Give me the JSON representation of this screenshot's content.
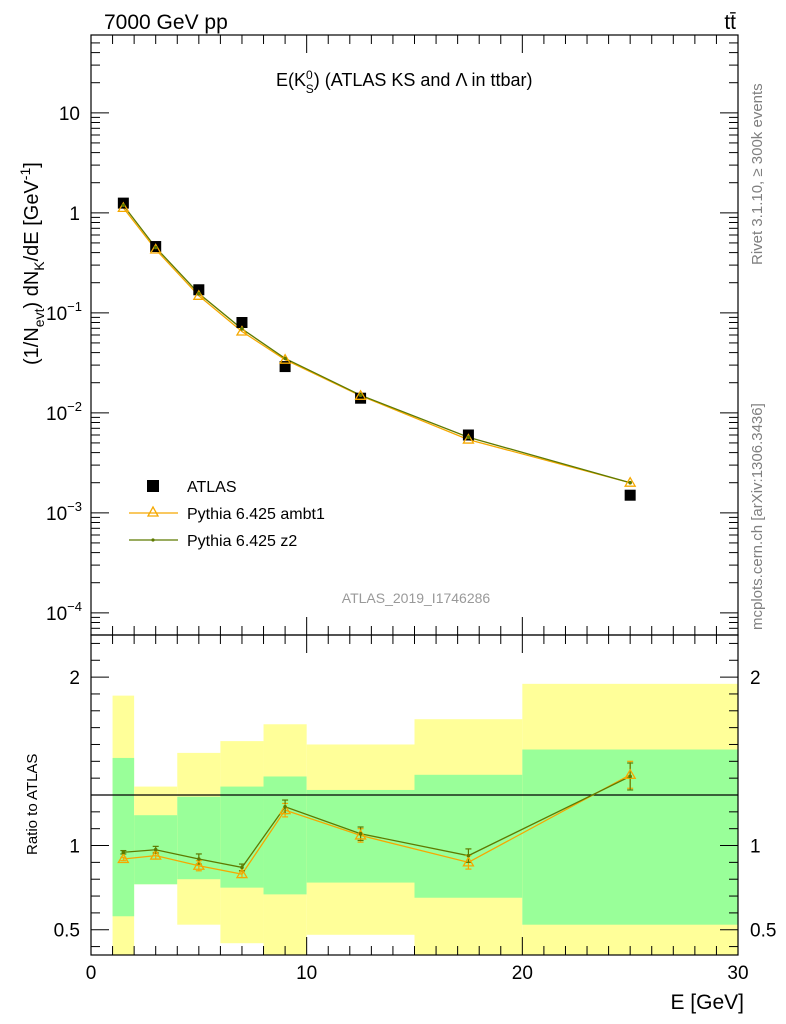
{
  "header": {
    "left": "7000 GeV pp",
    "right": "tt̄"
  },
  "side_labels": {
    "rivet": "Rivet 3.1.10, ≥ 300k events",
    "mcplots": "mcplots.cern.ch [arXiv:1306.3436]"
  },
  "colors": {
    "atlas": "#000000",
    "ambt1": "#f5a800",
    "z2": "#5e7a00",
    "band_outer": "#ffff99",
    "band_inner": "#99ff99"
  },
  "chart_data": [
    {
      "type": "scatter",
      "panel": "main",
      "title": "E(K⁰S) (ATLAS KS and Λ in ttbar)",
      "title_parts": {
        "main": "E(K",
        "sup": "0",
        "sub": "S",
        "tail": ") (ATLAS KS and Λ in ttbar)"
      },
      "ylabel": "(1/N_evt) dN_K/dE [GeV^-1]",
      "ylabel_parts": {
        "a": "(1/N",
        "sub1": "evt",
        "b": ") dN",
        "sub2": "K",
        "c": "/dE [GeV",
        "sup": "-1",
        "d": "]"
      },
      "yscale": "log",
      "ylim": [
        6e-05,
        60
      ],
      "xlim": [
        0,
        30
      ],
      "yticks": [
        {
          "v": 0.0001,
          "base": "10",
          "exp": "−4"
        },
        {
          "v": 0.001,
          "base": "10",
          "exp": "−3"
        },
        {
          "v": 0.01,
          "base": "10",
          "exp": "−2"
        },
        {
          "v": 0.1,
          "base": "10",
          "exp": "−1"
        },
        {
          "v": 1,
          "base": "1",
          "exp": ""
        },
        {
          "v": 10,
          "base": "10",
          "exp": ""
        }
      ],
      "watermark": "ATLAS_2019_I1746286",
      "legend_position": "bottom-left",
      "series": [
        {
          "name": "ATLAS",
          "marker": "square",
          "x": [
            1.5,
            3,
            5,
            7,
            9,
            12.5,
            17.5,
            25
          ],
          "y": [
            1.25,
            0.46,
            0.17,
            0.08,
            0.029,
            0.014,
            0.006,
            0.0015
          ]
        },
        {
          "name": "Pythia 6.425 ambt1",
          "marker": "triangle",
          "x": [
            1.5,
            3,
            5,
            7,
            9,
            12.5,
            17.5,
            25
          ],
          "y": [
            1.12,
            0.43,
            0.148,
            0.065,
            0.034,
            0.0148,
            0.0054,
            0.002
          ]
        },
        {
          "name": "Pythia 6.425 z2",
          "marker": "dot",
          "x": [
            1.5,
            3,
            5,
            7,
            9,
            12.5,
            17.5,
            25
          ],
          "y": [
            1.19,
            0.45,
            0.156,
            0.069,
            0.035,
            0.015,
            0.0057,
            0.002
          ]
        }
      ]
    },
    {
      "type": "line",
      "panel": "ratio",
      "ylabel": "Ratio to ATLAS",
      "xlabel": "E [GeV]",
      "xlim": [
        0,
        30
      ],
      "ylim": [
        0.35,
        2.25
      ],
      "yticks": [
        "0.5",
        "1",
        "2"
      ],
      "xticks": [
        "0",
        "10",
        "20",
        "30"
      ],
      "bins": [
        {
          "x0": 1,
          "x1": 2,
          "outer_lo": 0.35,
          "outer_hi": 1.89,
          "inner_lo": 0.58,
          "inner_hi": 1.52
        },
        {
          "x0": 2,
          "x1": 4,
          "outer_lo": 0.77,
          "outer_hi": 1.35,
          "inner_lo": 0.77,
          "inner_hi": 1.18
        },
        {
          "x0": 4,
          "x1": 6,
          "outer_lo": 0.53,
          "outer_hi": 1.55,
          "inner_lo": 0.8,
          "inner_hi": 1.29
        },
        {
          "x0": 6,
          "x1": 8,
          "outer_lo": 0.42,
          "outer_hi": 1.62,
          "inner_lo": 0.75,
          "inner_hi": 1.35
        },
        {
          "x0": 8,
          "x1": 10,
          "outer_lo": 0.35,
          "outer_hi": 1.72,
          "inner_lo": 0.71,
          "inner_hi": 1.41
        },
        {
          "x0": 10,
          "x1": 15,
          "outer_lo": 0.47,
          "outer_hi": 1.6,
          "inner_lo": 0.78,
          "inner_hi": 1.33
        },
        {
          "x0": 15,
          "x1": 20,
          "outer_lo": 0.35,
          "outer_hi": 1.75,
          "inner_lo": 0.69,
          "inner_hi": 1.42
        },
        {
          "x0": 20,
          "x1": 30,
          "outer_lo": 0.35,
          "outer_hi": 1.96,
          "inner_lo": 0.53,
          "inner_hi": 1.57
        }
      ],
      "series": [
        {
          "name": "Pythia 6.425 ambt1",
          "marker": "triangle",
          "x": [
            1.5,
            3,
            5,
            7,
            9,
            12.5,
            17.5,
            25
          ],
          "y": [
            0.92,
            0.94,
            0.88,
            0.83,
            1.21,
            1.06,
            0.9,
            1.42
          ],
          "err": [
            0.01,
            0.02,
            0.03,
            0.02,
            0.04,
            0.04,
            0.04,
            0.08
          ]
        },
        {
          "name": "Pythia 6.425 z2",
          "marker": "dot",
          "x": [
            1.5,
            3,
            5,
            7,
            9,
            12.5,
            17.5,
            25
          ],
          "y": [
            0.96,
            0.975,
            0.92,
            0.87,
            1.23,
            1.07,
            0.94,
            1.41
          ],
          "err": [
            0.01,
            0.02,
            0.03,
            0.02,
            0.04,
            0.04,
            0.04,
            0.08
          ]
        }
      ]
    }
  ]
}
